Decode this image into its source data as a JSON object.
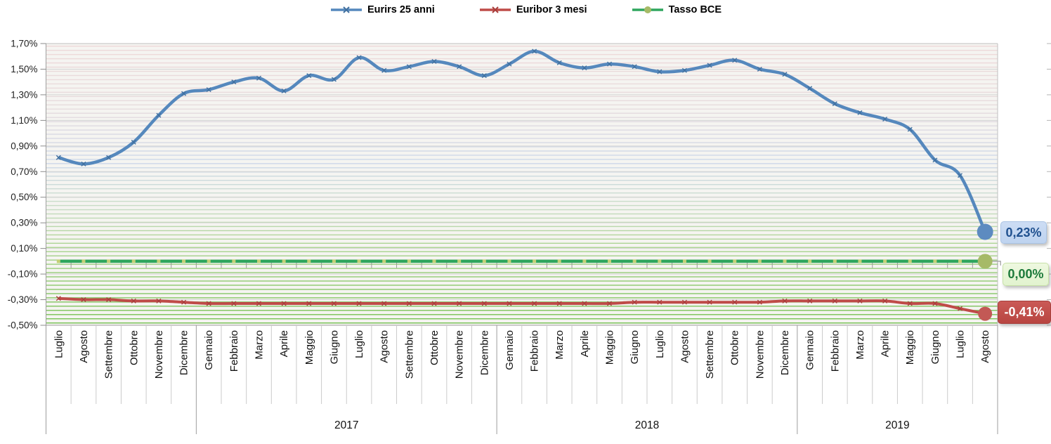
{
  "chart_data": {
    "type": "line",
    "title": "",
    "legend_position": "top",
    "x_axis": {
      "categories": [
        "Luglio",
        "Agosto",
        "Settembre",
        "Ottobre",
        "Novembre",
        "Dicembre",
        "Gennaio",
        "Febbraio",
        "Marzo",
        "Aprile",
        "Maggio",
        "Giugno",
        "Luglio",
        "Agosto",
        "Settembre",
        "Ottobre",
        "Novembre",
        "Dicembre",
        "Gennaio",
        "Febbraio",
        "Marzo",
        "Aprile",
        "Maggio",
        "Giugno",
        "Luglio",
        "Agosto",
        "Settembre",
        "Ottobre",
        "Novembre",
        "Dicembre",
        "Gennaio",
        "Febbraio",
        "Marzo",
        "Aprile",
        "Maggio",
        "Giugno",
        "Luglio",
        "Agosto"
      ],
      "year_groups": [
        {
          "label": "",
          "span": 6
        },
        {
          "label": "2017",
          "span": 12
        },
        {
          "label": "2018",
          "span": 12
        },
        {
          "label": "2019",
          "span": 8
        }
      ]
    },
    "y_axis": {
      "min": -0.5,
      "max": 1.7,
      "step": 0.2,
      "tick_labels": [
        "1,70%",
        "1,50%",
        "1,30%",
        "1,10%",
        "0,90%",
        "0,70%",
        "0,50%",
        "0,30%",
        "0,10%",
        "-0,10%",
        "-0,30%",
        "-0,50%"
      ],
      "grid": true
    },
    "series": [
      {
        "name": "Eurirs 25 anni",
        "color": "#5588bd",
        "marker": "x",
        "marker_color": "#41709f",
        "end_value_label": "0,23%",
        "values": [
          0.81,
          0.76,
          0.81,
          0.93,
          1.14,
          1.31,
          1.34,
          1.4,
          1.43,
          1.33,
          1.45,
          1.42,
          1.59,
          1.49,
          1.52,
          1.56,
          1.52,
          1.45,
          1.54,
          1.64,
          1.55,
          1.51,
          1.54,
          1.52,
          1.48,
          1.49,
          1.53,
          1.57,
          1.5,
          1.46,
          1.35,
          1.23,
          1.16,
          1.11,
          1.03,
          0.79,
          0.67,
          0.23
        ]
      },
      {
        "name": "Euribor 3 mesi",
        "color": "#bf4b48",
        "marker": "x",
        "marker_color": "#a83e3c",
        "end_value_label": "-0,41%",
        "values": [
          -0.29,
          -0.3,
          -0.3,
          -0.31,
          -0.31,
          -0.32,
          -0.33,
          -0.33,
          -0.33,
          -0.33,
          -0.33,
          -0.33,
          -0.33,
          -0.33,
          -0.33,
          -0.33,
          -0.33,
          -0.33,
          -0.33,
          -0.33,
          -0.33,
          -0.33,
          -0.33,
          -0.32,
          -0.32,
          -0.32,
          -0.32,
          -0.32,
          -0.32,
          -0.31,
          -0.31,
          -0.31,
          -0.31,
          -0.31,
          -0.33,
          -0.33,
          -0.37,
          -0.41
        ]
      },
      {
        "name": "Tasso BCE",
        "color": "#2fa65e",
        "marker": "square",
        "marker_color": "#c3d077",
        "end_circle_color": "#a6ba67",
        "end_value_label": "0,00%",
        "values": [
          0.0,
          0.0,
          0.0,
          0.0,
          0.0,
          0.0,
          0.0,
          0.0,
          0.0,
          0.0,
          0.0,
          0.0,
          0.0,
          0.0,
          0.0,
          0.0,
          0.0,
          0.0,
          0.0,
          0.0,
          0.0,
          0.0,
          0.0,
          0.0,
          0.0,
          0.0,
          0.0,
          0.0,
          0.0,
          0.0,
          0.0,
          0.0,
          0.0,
          0.0,
          0.0,
          0.0,
          0.0,
          0.0
        ]
      }
    ]
  },
  "colors": {
    "grid_major": "#d4d4d4",
    "plot_border": "#bfbfbf",
    "axis_line": "#9e9e9e",
    "month_separator": "#cbcbcb",
    "stripe_base": "#f5f4f1"
  }
}
